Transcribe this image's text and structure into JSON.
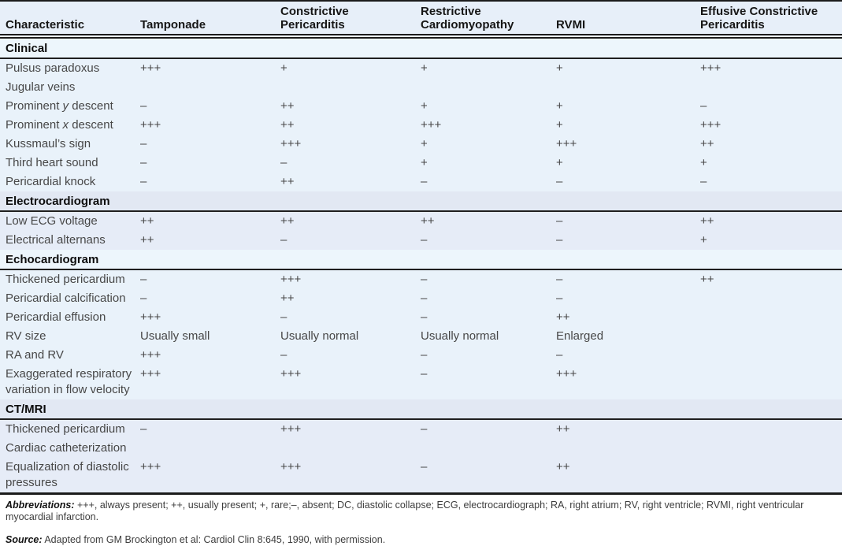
{
  "colors": {
    "cyan_section_row": "#e9f2fa",
    "cyan_section_header": "#edf6fc",
    "lavender_section_row": "#e6ecf7",
    "lavender_section_header": "#e2e8f3",
    "column_header_band": "#e7eff9",
    "rule": "#1b1b1b",
    "body_text": "#474747",
    "heading_text": "#0d0d0d"
  },
  "table": {
    "columns": [
      "Characteristic",
      "Tamponade",
      "Constrictive Pericarditis",
      "Restrictive Cardiomyopathy",
      "RVMI",
      "Effusive Constrictive Pericarditis"
    ],
    "sections": [
      {
        "title": "Clinical",
        "tint": "cyan",
        "rows": [
          {
            "label": "Pulsus paradoxus",
            "values": [
              "+++",
              "+",
              "+",
              "+",
              "+++"
            ]
          },
          {
            "label": "Jugular veins",
            "values": [
              "",
              "",
              "",
              "",
              ""
            ]
          },
          {
            "label": "Prominent *y* descent",
            "values": [
              "–",
              "++",
              "+",
              "+",
              "–"
            ]
          },
          {
            "label": "Prominent *x* descent",
            "values": [
              "+++",
              "++",
              "+++",
              "+",
              "+++"
            ]
          },
          {
            "label": "Kussmaul’s sign",
            "values": [
              "–",
              "+++",
              "+",
              "+++",
              "++"
            ]
          },
          {
            "label": "Third heart sound",
            "values": [
              "–",
              "–",
              "+",
              "+",
              "+"
            ]
          },
          {
            "label": "Pericardial knock",
            "values": [
              "–",
              "++",
              "–",
              "–",
              "–"
            ]
          }
        ]
      },
      {
        "title": "Electrocardiogram",
        "tint": "lavender",
        "rows": [
          {
            "label": "Low ECG voltage",
            "values": [
              "++",
              "++",
              "++",
              "–",
              "++"
            ]
          },
          {
            "label": "Electrical alternans",
            "values": [
              "++",
              "–",
              "–",
              "–",
              "+"
            ]
          }
        ]
      },
      {
        "title": "Echocardiogram",
        "tint": "cyan",
        "rows": [
          {
            "label": "Thickened pericardium",
            "values": [
              "–",
              "+++",
              "–",
              "–",
              "++"
            ]
          },
          {
            "label": "Pericardial calcification",
            "values": [
              "–",
              "++",
              "–",
              "–",
              ""
            ]
          },
          {
            "label": "Pericardial effusion",
            "values": [
              "+++",
              "–",
              "–",
              "++",
              ""
            ]
          },
          {
            "label": "RV size",
            "values": [
              "Usually small",
              "Usually normal",
              "Usually normal",
              "Enlarged",
              ""
            ]
          },
          {
            "label": "RA and RV",
            "values": [
              "+++",
              "–",
              "–",
              "–",
              ""
            ]
          },
          {
            "label": "Exaggerated respiratory variation in flow velocity",
            "values": [
              "+++",
              "+++",
              "–",
              "+++",
              ""
            ]
          }
        ]
      },
      {
        "title": "CT/MRI",
        "tint": "lavender",
        "rows": [
          {
            "label": "Thickened pericardium",
            "values": [
              "–",
              "+++",
              "–",
              "++",
              ""
            ]
          },
          {
            "label": "Cardiac catheterization",
            "values": [
              "",
              "",
              "",
              "",
              ""
            ]
          },
          {
            "label": "Equalization of diastolic pressures",
            "values": [
              "+++",
              "+++",
              "–",
              "++",
              ""
            ]
          }
        ]
      }
    ]
  },
  "footer": {
    "abbreviations_label": "Abbreviations:",
    "abbreviations_text": " +++, always present; ++, usually present; +, rare;–, absent; DC, diastolic collapse; ECG, electrocardiograph; RA, right atrium; RV, right ventricle; RVMI, right ventricular myocardial infarction.",
    "source_label": "Source:",
    "source_text": " Adapted from GM Brockington et al: Cardiol Clin 8:645, 1990, with permission."
  }
}
